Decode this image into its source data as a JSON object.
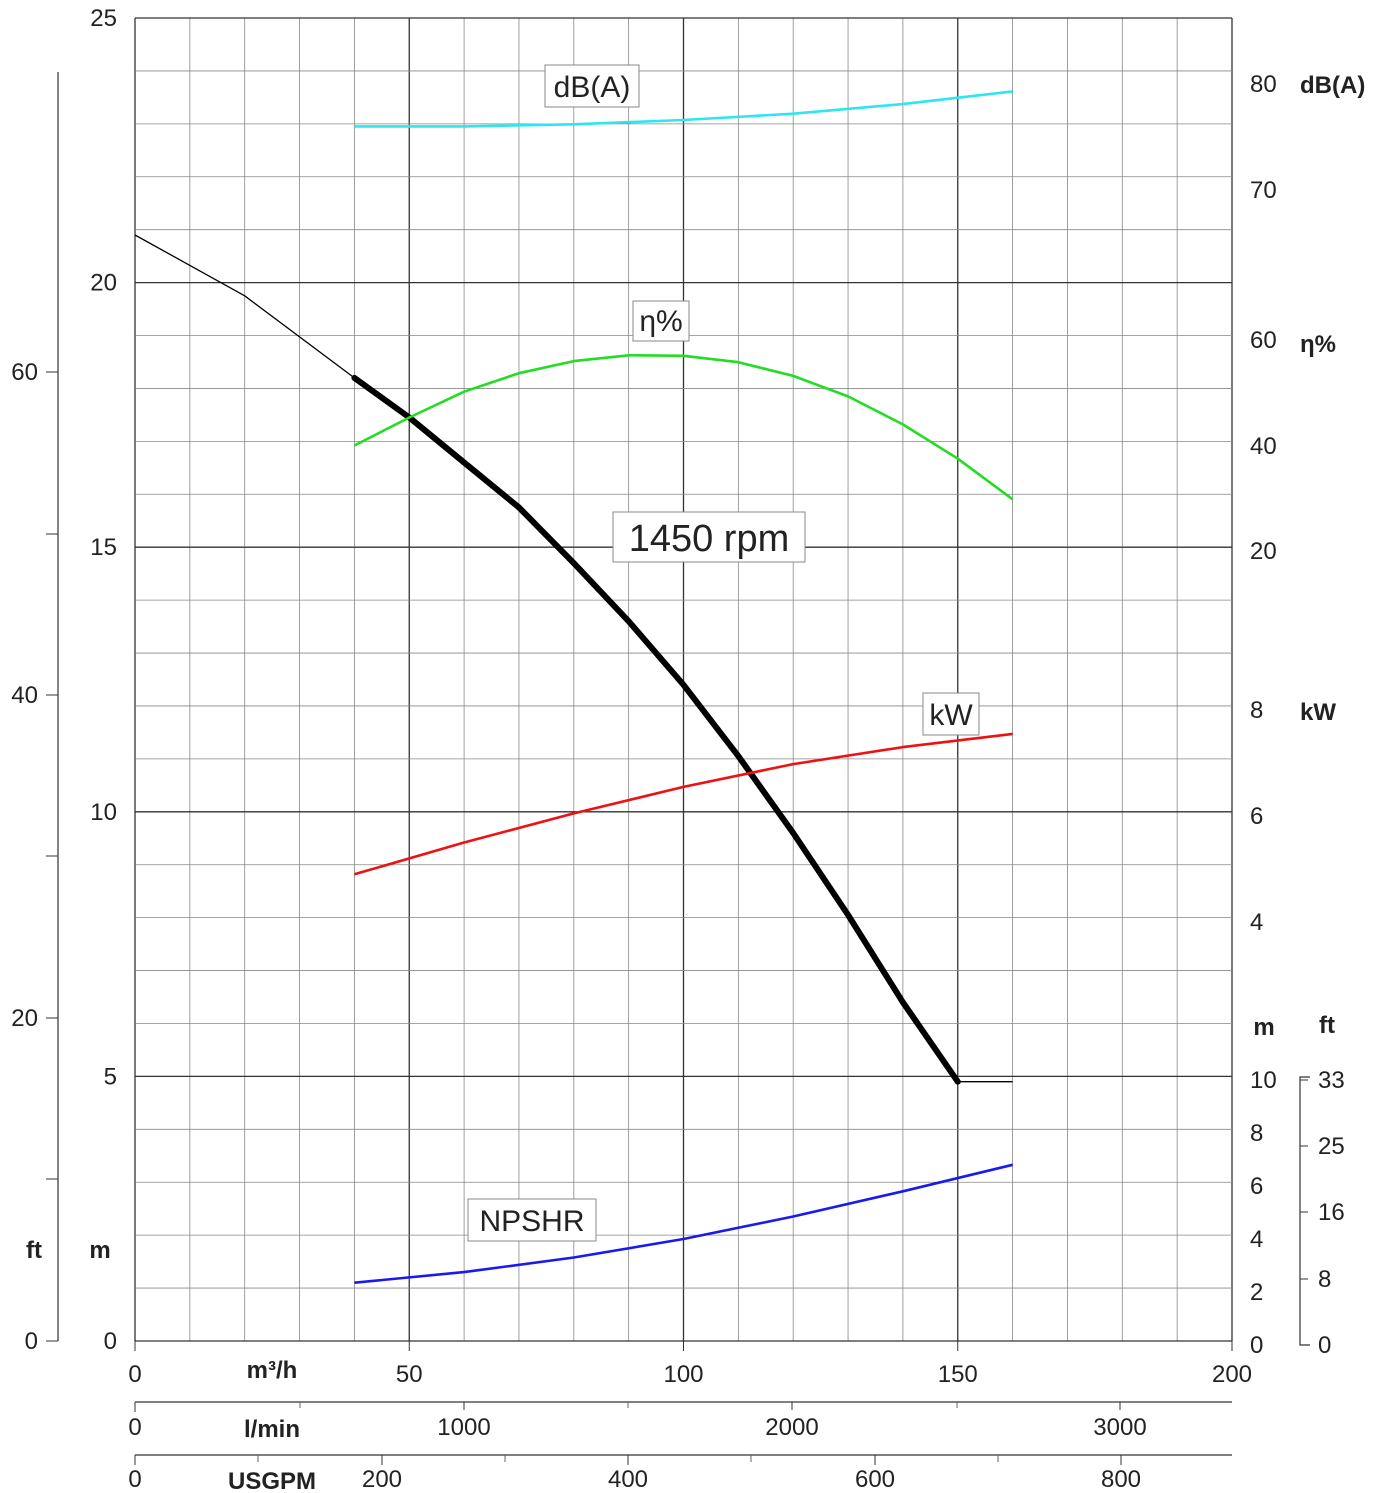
{
  "chart_data": {
    "type": "line",
    "speed_label": "1450 rpm",
    "x_axes": {
      "flow_m3h": {
        "unit": "m³/h",
        "range": [
          0,
          200
        ],
        "ticks": [
          "0",
          "50",
          "100",
          "150",
          "200"
        ]
      },
      "flow_lmin": {
        "unit": "l/min",
        "ticks": [
          "0",
          "1000",
          "2000",
          "3000"
        ]
      },
      "flow_usgpm": {
        "unit": "USGPM",
        "ticks": [
          "0",
          "200",
          "400",
          "600",
          "800"
        ]
      }
    },
    "y_axes": {
      "head_m": {
        "unit": "m",
        "range": [
          0,
          25
        ],
        "ticks": [
          "0",
          "5",
          "10",
          "15",
          "20",
          "25"
        ]
      },
      "head_ft": {
        "unit": "ft",
        "ticks": [
          "0",
          "20",
          "40",
          "60"
        ]
      },
      "db": {
        "unit": "dB(A)",
        "ticks": [
          "70",
          "80"
        ]
      },
      "eff": {
        "unit": "η%",
        "ticks": [
          "20",
          "40",
          "60"
        ]
      },
      "kw": {
        "unit": "kW",
        "ticks": [
          "4",
          "6",
          "8"
        ]
      },
      "npsh_m": {
        "unit": "m",
        "ticks": [
          "0",
          "2",
          "4",
          "6",
          "8",
          "10"
        ]
      },
      "npsh_ft": {
        "unit": "ft",
        "ticks": [
          "0",
          "8",
          "16",
          "25",
          "33"
        ]
      }
    },
    "series": [
      {
        "name": "1450 rpm",
        "color": "#000000",
        "axis": "head_m",
        "x": [
          0,
          20,
          40,
          50,
          60,
          70,
          80,
          90,
          100,
          110,
          120,
          130,
          140,
          150,
          160
        ],
        "y": [
          20.9,
          19.75,
          18.2,
          17.45,
          16.6,
          15.75,
          14.7,
          13.6,
          12.4,
          11.05,
          9.6,
          8.05,
          6.4,
          4.9,
          4.9
        ],
        "operating_range": [
          40,
          150
        ]
      },
      {
        "name": "dB(A)",
        "color": "#2ee6f0",
        "axis": "db",
        "x": [
          40,
          60,
          80,
          100,
          120,
          140,
          160
        ],
        "y": [
          76.0,
          76.0,
          76.2,
          76.6,
          77.2,
          78.1,
          79.3
        ]
      },
      {
        "name": "η%",
        "color": "#22dd22",
        "axis": "eff",
        "x": [
          40,
          50,
          60,
          70,
          80,
          90,
          100,
          110,
          120,
          130,
          140,
          150,
          160
        ],
        "y": [
          40.0,
          45.3,
          50.2,
          53.7,
          56.0,
          57.1,
          57.0,
          55.8,
          53.2,
          49.3,
          44.0,
          37.5,
          29.8
        ]
      },
      {
        "name": "kW",
        "color": "#ee1111",
        "axis": "kw",
        "x": [
          40,
          60,
          80,
          100,
          120,
          140,
          160
        ],
        "y": [
          4.9,
          5.5,
          6.05,
          6.55,
          6.98,
          7.3,
          7.55
        ]
      },
      {
        "name": "NPSHR",
        "color": "#1a1aee",
        "axis": "npsh_m",
        "x": [
          40,
          60,
          80,
          100,
          120,
          140,
          160
        ],
        "y": [
          2.35,
          2.75,
          3.3,
          4.0,
          4.85,
          5.8,
          6.8
        ]
      }
    ]
  }
}
